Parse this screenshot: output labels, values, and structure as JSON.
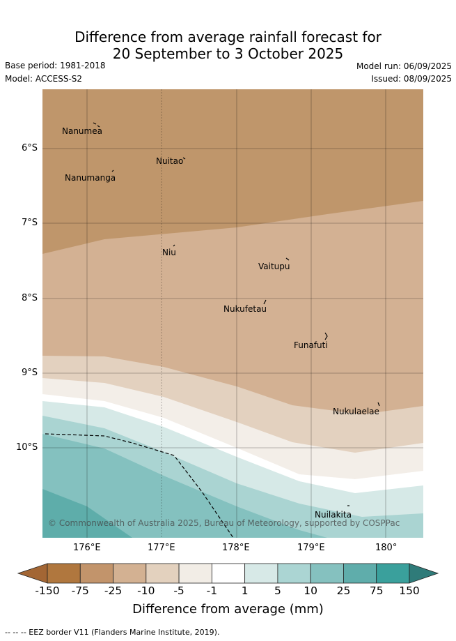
{
  "title_line1": "Difference from average rainfall forecast for",
  "title_line2": "20 September to 3 October 2025",
  "base_period": "Base period: 1981-2018",
  "model": "Model: ACCESS-S2",
  "model_run": "Model run: 06/09/2025",
  "issued": "Issued: 08/09/2025",
  "lat_labels": [
    "6°S",
    "7°S",
    "8°S",
    "9°S",
    "10°S"
  ],
  "lon_labels": [
    "176°E",
    "177°E",
    "178°E",
    "179°E",
    "180°"
  ],
  "places": [
    {
      "name": "Nanumea"
    },
    {
      "name": "Nuitao"
    },
    {
      "name": "Nanumanga"
    },
    {
      "name": "Niu"
    },
    {
      "name": "Vaitupu"
    },
    {
      "name": "Nukufetau"
    },
    {
      "name": "Funafuti"
    },
    {
      "name": "Nukulaelae"
    },
    {
      "name": "Nuilakita"
    }
  ],
  "copyright": "© Commonwealth of Australia 2025, Bureau of Meteorology, supported by COSPPac",
  "colorbar": {
    "labels": [
      "-150",
      "-75",
      "-25",
      "-10",
      "-5",
      "-1",
      "1",
      "5",
      "10",
      "25",
      "75",
      "150"
    ],
    "colors": [
      "#a36634",
      "#b0773e",
      "#c2946b",
      "#d3b192",
      "#e3d1be",
      "#f2ede6",
      "#ffffff",
      "#d7e9e7",
      "#abd5d3",
      "#85c1bf",
      "#5fadab",
      "#3aa09c",
      "#2f7b79"
    ],
    "title": "Difference from average (mm)"
  },
  "legend_note": "-- -- -- EEZ border V11 (Flanders Marine Institute, 2019)."
}
